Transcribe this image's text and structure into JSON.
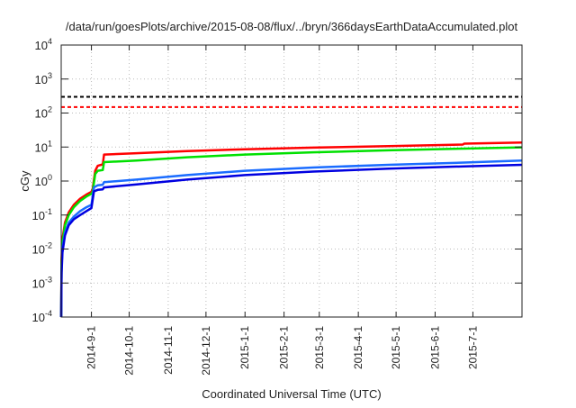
{
  "chart_data": {
    "type": "line",
    "title": "/data/run/goesPlots/archive/2015-08-08/flux/../bryn/366daysEarthDataAccumulated.plot",
    "xlabel": "Coordinated Universal Time (UTC)",
    "ylabel": "cGy",
    "x_units": "days since 2014-08-08",
    "xlim": [
      0,
      366
    ],
    "ylim": [
      0.0001,
      10000
    ],
    "yscale": "log",
    "grid": true,
    "xticks": [
      {
        "day": 24,
        "label": "2014-9-1"
      },
      {
        "day": 54,
        "label": "2014-10-1"
      },
      {
        "day": 85,
        "label": "2014-11-1"
      },
      {
        "day": 115,
        "label": "2014-12-1"
      },
      {
        "day": 146,
        "label": "2015-1-1"
      },
      {
        "day": 177,
        "label": "2015-2-1"
      },
      {
        "day": 205,
        "label": "2015-3-1"
      },
      {
        "day": 236,
        "label": "2015-4-1"
      },
      {
        "day": 266,
        "label": "2015-5-1"
      },
      {
        "day": 297,
        "label": "2015-6-1"
      },
      {
        "day": 327,
        "label": "2015-7-1"
      }
    ],
    "yticks": [
      {
        "base": "10",
        "exp": "-4"
      },
      {
        "base": "10",
        "exp": "-3"
      },
      {
        "base": "10",
        "exp": "-2"
      },
      {
        "base": "10",
        "exp": "-1"
      },
      {
        "base": "10",
        "exp": "0"
      },
      {
        "base": "10",
        "exp": "1"
      },
      {
        "base": "10",
        "exp": "2"
      },
      {
        "base": "10",
        "exp": "3"
      },
      {
        "base": "10",
        "exp": "4"
      }
    ],
    "thresholds": [
      {
        "value": 300,
        "color": "#000000"
      },
      {
        "value": 150,
        "color": "#ff0000"
      }
    ],
    "series": [
      {
        "name": "red",
        "color": "#ff0000",
        "points": [
          [
            0,
            0.0001
          ],
          [
            0.3,
            0.005
          ],
          [
            1,
            0.02
          ],
          [
            3,
            0.06
          ],
          [
            6,
            0.12
          ],
          [
            10,
            0.2
          ],
          [
            15,
            0.3
          ],
          [
            20,
            0.4
          ],
          [
            24,
            0.48
          ],
          [
            25,
            0.6
          ],
          [
            27,
            2.0
          ],
          [
            29,
            2.8
          ],
          [
            33,
            3.1
          ],
          [
            34,
            6.0
          ],
          [
            60,
            6.6
          ],
          [
            100,
            7.6
          ],
          [
            146,
            8.6
          ],
          [
            200,
            9.6
          ],
          [
            260,
            10.6
          ],
          [
            319,
            11.8
          ],
          [
            320,
            12.6
          ],
          [
            366,
            13.5
          ]
        ]
      },
      {
        "name": "green",
        "color": "#00e000",
        "points": [
          [
            0,
            0.0001
          ],
          [
            0.3,
            0.004
          ],
          [
            1,
            0.015
          ],
          [
            3,
            0.05
          ],
          [
            6,
            0.1
          ],
          [
            10,
            0.17
          ],
          [
            15,
            0.26
          ],
          [
            20,
            0.35
          ],
          [
            24,
            0.42
          ],
          [
            25,
            0.5
          ],
          [
            27,
            1.6
          ],
          [
            29,
            2.0
          ],
          [
            33,
            2.1
          ],
          [
            34,
            3.6
          ],
          [
            60,
            4.0
          ],
          [
            100,
            5.0
          ],
          [
            146,
            6.0
          ],
          [
            200,
            7.0
          ],
          [
            260,
            8.0
          ],
          [
            320,
            9.0
          ],
          [
            366,
            9.8
          ]
        ]
      },
      {
        "name": "light-blue",
        "color": "#1a6cff",
        "points": [
          [
            0,
            0.0001
          ],
          [
            0.3,
            0.003
          ],
          [
            1,
            0.01
          ],
          [
            3,
            0.03
          ],
          [
            6,
            0.06
          ],
          [
            10,
            0.09
          ],
          [
            15,
            0.13
          ],
          [
            20,
            0.17
          ],
          [
            24,
            0.2
          ],
          [
            26,
            0.65
          ],
          [
            29,
            0.75
          ],
          [
            33,
            0.78
          ],
          [
            34,
            0.93
          ],
          [
            60,
            1.1
          ],
          [
            100,
            1.5
          ],
          [
            146,
            2.0
          ],
          [
            200,
            2.5
          ],
          [
            260,
            3.0
          ],
          [
            320,
            3.5
          ],
          [
            366,
            4.0
          ]
        ]
      },
      {
        "name": "dark-blue",
        "color": "#0000e0",
        "points": [
          [
            0,
            0.0001
          ],
          [
            0.3,
            0.002
          ],
          [
            1,
            0.008
          ],
          [
            3,
            0.025
          ],
          [
            6,
            0.05
          ],
          [
            10,
            0.075
          ],
          [
            15,
            0.1
          ],
          [
            20,
            0.13
          ],
          [
            24,
            0.16
          ],
          [
            26,
            0.5
          ],
          [
            29,
            0.55
          ],
          [
            33,
            0.57
          ],
          [
            34,
            0.65
          ],
          [
            60,
            0.8
          ],
          [
            100,
            1.1
          ],
          [
            146,
            1.5
          ],
          [
            200,
            1.9
          ],
          [
            260,
            2.3
          ],
          [
            320,
            2.7
          ],
          [
            366,
            3.0
          ]
        ]
      }
    ]
  }
}
